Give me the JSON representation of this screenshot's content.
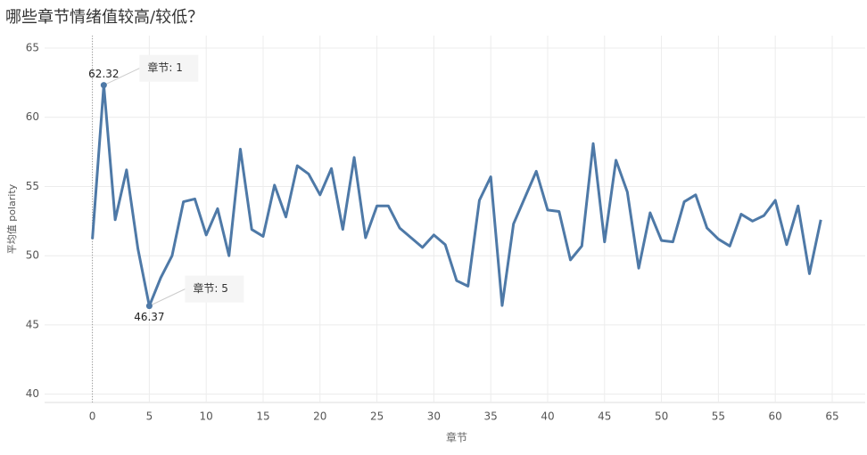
{
  "chart_data": {
    "type": "line",
    "title": "哪些章节情绪值较高/较低？",
    "x_label": "章节",
    "y_label": "平均值 polarity",
    "x": [
      0,
      1,
      2,
      3,
      4,
      5,
      6,
      7,
      8,
      9,
      10,
      11,
      12,
      13,
      14,
      15,
      16,
      17,
      18,
      19,
      20,
      21,
      22,
      23,
      24,
      25,
      26,
      27,
      28,
      29,
      30,
      31,
      32,
      33,
      34,
      35,
      36,
      37,
      38,
      39,
      40,
      41,
      42,
      43,
      44,
      45,
      46,
      47,
      48,
      49,
      50,
      51,
      52,
      53,
      54,
      55,
      56,
      57,
      58,
      59,
      60,
      61,
      62,
      63,
      64
    ],
    "values": [
      51.2,
      62.32,
      52.6,
      56.2,
      50.5,
      46.37,
      48.4,
      50.0,
      53.9,
      54.1,
      51.5,
      53.4,
      50.0,
      57.7,
      51.9,
      51.4,
      55.1,
      52.8,
      56.5,
      55.9,
      54.4,
      56.3,
      51.9,
      57.1,
      51.3,
      53.6,
      53.6,
      52.0,
      51.3,
      50.6,
      51.5,
      50.8,
      48.2,
      47.8,
      54.0,
      55.7,
      46.4,
      52.3,
      54.2,
      56.1,
      53.3,
      53.2,
      49.7,
      50.7,
      58.1,
      51.0,
      56.9,
      54.6,
      49.1,
      53.1,
      51.1,
      51.0,
      53.9,
      54.4,
      52.0,
      51.2,
      50.7,
      53.0,
      52.5,
      52.9,
      54.0,
      50.8,
      53.6,
      48.7,
      52.6
    ],
    "color": "#4e79a7",
    "xlim": [
      -4.2,
      67.9
    ],
    "xticks": [
      0,
      5,
      10,
      15,
      20,
      25,
      30,
      35,
      40,
      45,
      50,
      55,
      60,
      65
    ],
    "ylim": [
      39.4,
      65.9
    ],
    "yticks": [
      40,
      45,
      50,
      55,
      60,
      65
    ],
    "grid": true,
    "annotations": [
      {
        "x": 1,
        "text": "章节: 1"
      },
      {
        "x": 5,
        "text": "章节: 5"
      }
    ]
  }
}
